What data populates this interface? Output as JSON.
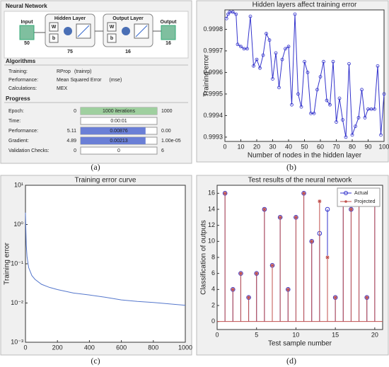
{
  "nntool": {
    "title": "Neural Network",
    "diagram": {
      "input": "Input",
      "input_size": "50",
      "hidden": "Hidden Layer",
      "hidden_size": "75",
      "output_layer": "Output Layer",
      "output_layer_size": "16",
      "output": "Output",
      "output_size": "16",
      "w": "W",
      "b": "b"
    },
    "algorithms": {
      "title": "Algorithms",
      "rows": [
        [
          "Training:",
          "RProp",
          "(trainrp)"
        ],
        [
          "Performance:",
          "Mean Squared Error",
          "(mse)"
        ],
        [
          "Calculations:",
          "MEX"
        ]
      ]
    },
    "progress": {
      "title": "Progress",
      "rows": [
        [
          "Epoch:",
          "0",
          "1000 iterations",
          "1000"
        ],
        [
          "Time:",
          "0:00:01"
        ],
        [
          "Performance:",
          "5.11",
          "0.00876",
          "0.00"
        ],
        [
          "Gradient:",
          "4.89",
          "0.00213",
          "1.00e-05"
        ],
        [
          "Validation Checks:",
          "0",
          "0",
          "6"
        ]
      ]
    }
  },
  "captions": [
    "(a)",
    "(b)",
    "(c)",
    "(d)"
  ],
  "chart_data": [
    {
      "type": "line",
      "title": "Hidden layers affect training error",
      "xlabel": "Number of nodes in the hidden layer",
      "ylabel": "Training error",
      "marker": "o",
      "series": [
        {
          "name": "Training error",
          "color": "#3333cc",
          "x": [
            1,
            2,
            3,
            5,
            7,
            8,
            10,
            12,
            14,
            16,
            18,
            20,
            22,
            24,
            26,
            28,
            30,
            32,
            34,
            36,
            38,
            40,
            42,
            44,
            46,
            48,
            50,
            52,
            54,
            56,
            58,
            60,
            62,
            64,
            66,
            68,
            70,
            72,
            74,
            76,
            78,
            80,
            82,
            84,
            86,
            88,
            90,
            92,
            94,
            96,
            98,
            100
          ],
          "values": [
            0.99985,
            0.99987,
            0.99988,
            0.99988,
            0.99987,
            0.99973,
            0.99972,
            0.99971,
            0.99971,
            0.99986,
            0.99963,
            0.99966,
            0.99962,
            0.99968,
            0.99978,
            0.99975,
            0.99957,
            0.99969,
            0.99953,
            0.99966,
            0.99971,
            0.99972,
            0.99945,
            0.99987,
            0.9995,
            0.99944,
            0.99965,
            0.9996,
            0.99941,
            0.99941,
            0.99952,
            0.99958,
            0.99965,
            0.99947,
            0.99945,
            0.99965,
            0.99937,
            0.99948,
            0.99938,
            0.9993,
            0.99964,
            0.99931,
            0.99935,
            0.99939,
            0.99952,
            0.99939,
            0.99943,
            0.99943,
            0.99943,
            0.99963,
            0.99931,
            0.9995
          ]
        }
      ],
      "xlim": [
        0,
        100
      ],
      "xticks": [
        0,
        10,
        20,
        30,
        40,
        50,
        60,
        70,
        80,
        90,
        100
      ],
      "ylim": [
        0.99928,
        0.99989
      ],
      "yticks": [
        0.9993,
        0.9994,
        0.9995,
        0.9996,
        0.9997,
        0.9998
      ]
    },
    {
      "type": "line",
      "title": "Training error curve",
      "ylabel": "Training error",
      "log_y": true,
      "series": [
        {
          "name": "Training error",
          "color": "#5577cc",
          "x": [
            0,
            5,
            10,
            20,
            40,
            60,
            100,
            150,
            200,
            300,
            400,
            500,
            600,
            700,
            800,
            900,
            1000
          ],
          "values": [
            2,
            0.3,
            0.15,
            0.08,
            0.05,
            0.04,
            0.03,
            0.025,
            0.022,
            0.018,
            0.016,
            0.014,
            0.012,
            0.011,
            0.0103,
            0.0095,
            0.00876
          ]
        }
      ],
      "xlim": [
        0,
        1000
      ],
      "xticks": [
        0,
        200,
        400,
        600,
        800,
        1000
      ],
      "ylim": [
        0.001,
        10
      ],
      "yticks": [
        {
          "value": 0.001,
          "label": "10⁻³"
        },
        {
          "value": 0.01,
          "label": "10⁻²"
        },
        {
          "value": 0.1,
          "label": "10⁻¹"
        },
        {
          "value": 1,
          "label": "10⁰"
        },
        {
          "value": 10,
          "label": "10¹"
        }
      ]
    },
    {
      "type": "stem",
      "title": "Test results of the neural network",
      "xlabel": "Test sample number",
      "ylabel": "Classification of outputs",
      "legend": "upper right",
      "x": [
        1,
        2,
        3,
        4,
        5,
        6,
        7,
        8,
        9,
        10,
        11,
        12,
        13,
        14,
        15,
        16,
        17,
        18,
        19,
        20
      ],
      "series": [
        {
          "name": "Actual",
          "color": "#3333cc",
          "marker": "o",
          "values": [
            16,
            4,
            6,
            3,
            6,
            14,
            7,
            13,
            4,
            13,
            16,
            10,
            11,
            14,
            3,
            16,
            14,
            16,
            3,
            16
          ]
        },
        {
          "name": "Projected",
          "color": "#c0504d",
          "marker": "*",
          "values": [
            16,
            4,
            6,
            3,
            6,
            14,
            7,
            13,
            4,
            13,
            16,
            10,
            15,
            8,
            3,
            16,
            14,
            16,
            3,
            16
          ]
        }
      ],
      "xlim": [
        0,
        21
      ],
      "xticks": [
        0,
        5,
        10,
        15,
        20
      ],
      "ylim": [
        -1,
        17
      ],
      "yticks": [
        0,
        2,
        4,
        6,
        8,
        10,
        12,
        14,
        16
      ]
    }
  ]
}
